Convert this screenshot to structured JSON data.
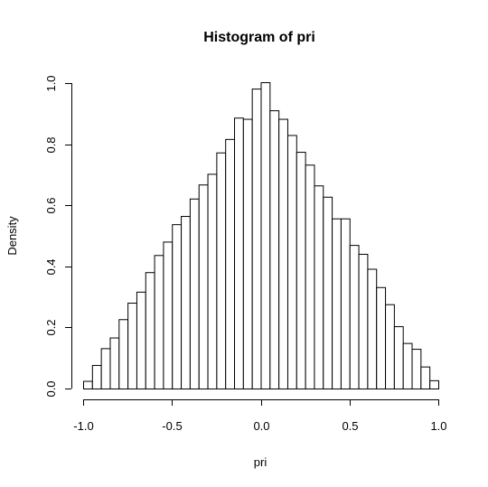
{
  "chart_data": {
    "type": "bar",
    "subtype": "histogram",
    "title": "Histogram of pri",
    "xlabel": "pri",
    "ylabel": "Density",
    "xlim": [
      -1.0,
      1.0
    ],
    "ylim": [
      0.0,
      1.0
    ],
    "xticks": [
      -1.0,
      -0.5,
      0.0,
      0.5,
      1.0
    ],
    "xtick_labels": [
      "-1.0",
      "-0.5",
      "0.0",
      "0.5",
      "1.0"
    ],
    "yticks": [
      0.0,
      0.2,
      0.4,
      0.6,
      0.8,
      1.0
    ],
    "ytick_labels": [
      "0.0",
      "0.2",
      "0.4",
      "0.6",
      "0.8",
      "1.0"
    ],
    "bin_width": 0.05,
    "bin_edges": [
      -1.0,
      -0.95,
      -0.9,
      -0.85,
      -0.8,
      -0.75,
      -0.7,
      -0.65,
      -0.6,
      -0.55,
      -0.5,
      -0.45,
      -0.4,
      -0.35,
      -0.3,
      -0.25,
      -0.2,
      -0.15,
      -0.1,
      -0.05,
      0.0,
      0.05,
      0.1,
      0.15,
      0.2,
      0.25,
      0.3,
      0.35,
      0.4,
      0.45,
      0.5,
      0.55,
      0.6,
      0.65,
      0.7,
      0.75,
      0.8,
      0.85,
      0.9,
      0.95,
      1.0
    ],
    "values": [
      0.025,
      0.077,
      0.132,
      0.167,
      0.227,
      0.281,
      0.317,
      0.381,
      0.437,
      0.481,
      0.538,
      0.565,
      0.622,
      0.668,
      0.703,
      0.773,
      0.817,
      0.887,
      0.883,
      0.982,
      1.003,
      0.911,
      0.883,
      0.83,
      0.775,
      0.733,
      0.665,
      0.628,
      0.557,
      0.557,
      0.47,
      0.441,
      0.392,
      0.332,
      0.276,
      0.204,
      0.149,
      0.13,
      0.072,
      0.027
    ],
    "grid": false,
    "colors": {
      "bar_fill": "#ffffff",
      "bar_stroke": "#000000"
    }
  }
}
